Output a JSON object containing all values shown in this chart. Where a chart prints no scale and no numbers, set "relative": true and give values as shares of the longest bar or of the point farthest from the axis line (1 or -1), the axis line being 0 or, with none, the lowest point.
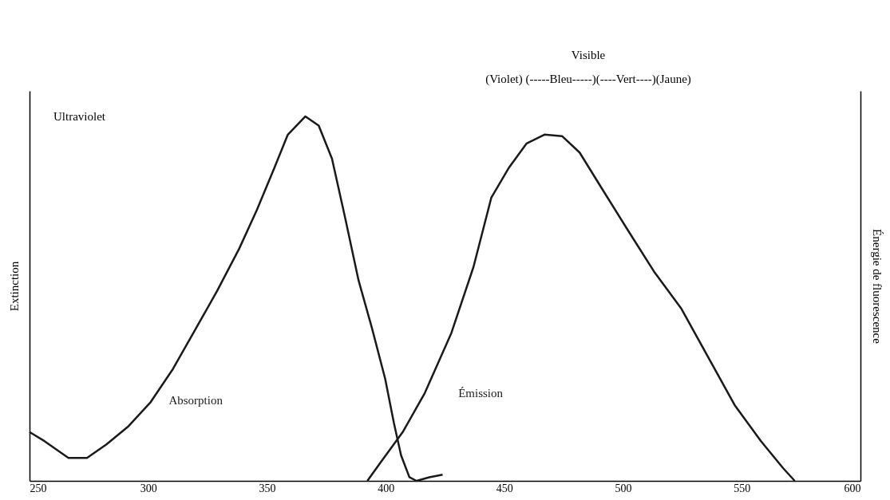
{
  "chart_data": {
    "type": "line",
    "relative": true,
    "xlabel": null,
    "ylabel": "Extinction",
    "y2label": "Énergie de fluorescence",
    "xlim": [
      250,
      600
    ],
    "xticks": [
      250,
      300,
      350,
      400,
      450,
      500,
      550,
      600
    ],
    "grid": false,
    "marker": "none",
    "line_style": "solid",
    "annotations": [
      "Ultraviolet",
      "Visible",
      "(Violet) (-----Bleu-----)(----Vert----)(Jaune)"
    ],
    "series": [
      {
        "name": "Absorption",
        "color": "#1a1a1a",
        "x": [
          250,
          256.3,
          266.4,
          274.2,
          282.4,
          291.7,
          301,
          310.4,
          319.7,
          329,
          338.3,
          345.8,
          353.2,
          358.8,
          366.2,
          371.8,
          377.4,
          383,
          388.6,
          394.2,
          399.8,
          403.5,
          406.5,
          410,
          413,
          418.4,
          424
        ],
        "values": [
          0.134,
          0.109,
          0.063,
          0.063,
          0.1,
          0.15,
          0.216,
          0.307,
          0.414,
          0.521,
          0.637,
          0.744,
          0.86,
          0.95,
          1,
          0.975,
          0.884,
          0.72,
          0.55,
          0.42,
          0.28,
          0.158,
          0.07,
          0.01,
          0,
          0.01,
          0.017
        ]
      },
      {
        "name": "Émission",
        "color": "#1a1a1a",
        "x": [
          392.3,
          397.9,
          407.2,
          416.5,
          427.7,
          437,
          444.5,
          452,
          459.4,
          466.9,
          474.3,
          481.7,
          491.1,
          502.2,
          513.4,
          524.6,
          535.8,
          547,
          558.1,
          567.4,
          572.3
        ],
        "values": [
          0,
          0.051,
          0.134,
          0.241,
          0.406,
          0.587,
          0.777,
          0.86,
          0.926,
          0.95,
          0.946,
          0.901,
          0.802,
          0.686,
          0.571,
          0.472,
          0.34,
          0.208,
          0.109,
          0.035,
          0
        ]
      }
    ]
  }
}
